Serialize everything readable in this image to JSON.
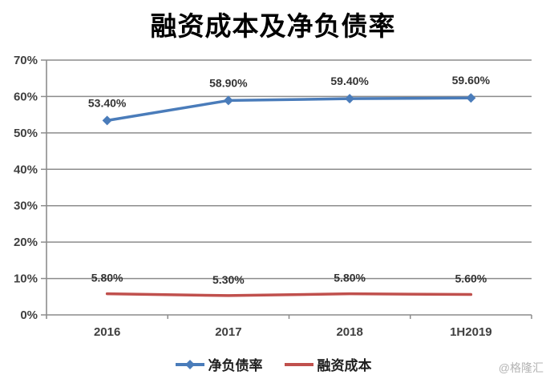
{
  "watermark": "@格隆汇",
  "colors": {
    "gridline": "#8c8c8c",
    "axis_line": "#8c8c8c",
    "axis_text": "#404040",
    "data_label_text": "#333333",
    "background": "#ffffff",
    "watermark_text": "#b3b3b3"
  },
  "chart_data": {
    "type": "line",
    "title": "融资成本及净负债率",
    "categories": [
      "2016",
      "2017",
      "2018",
      "1H2019"
    ],
    "series": [
      {
        "key": "net-gearing",
        "name": "净负债率",
        "values": [
          53.4,
          58.9,
          59.4,
          59.6
        ],
        "labels": [
          "53.40%",
          "58.90%",
          "59.40%",
          "59.60%"
        ],
        "color": "#4a7cba",
        "marker": "diamond"
      },
      {
        "key": "financing-cost",
        "name": "融资成本",
        "values": [
          5.8,
          5.3,
          5.8,
          5.6
        ],
        "labels": [
          "5.80%",
          "5.30%",
          "5.80%",
          "5.60%"
        ],
        "color": "#c0504d",
        "marker": "none"
      }
    ],
    "ylim": [
      0,
      70
    ],
    "ytick_step": 10,
    "ytick_labels": [
      "0%",
      "10%",
      "20%",
      "30%",
      "40%",
      "50%",
      "60%",
      "70%"
    ],
    "grid": true,
    "legend_position": "bottom"
  }
}
